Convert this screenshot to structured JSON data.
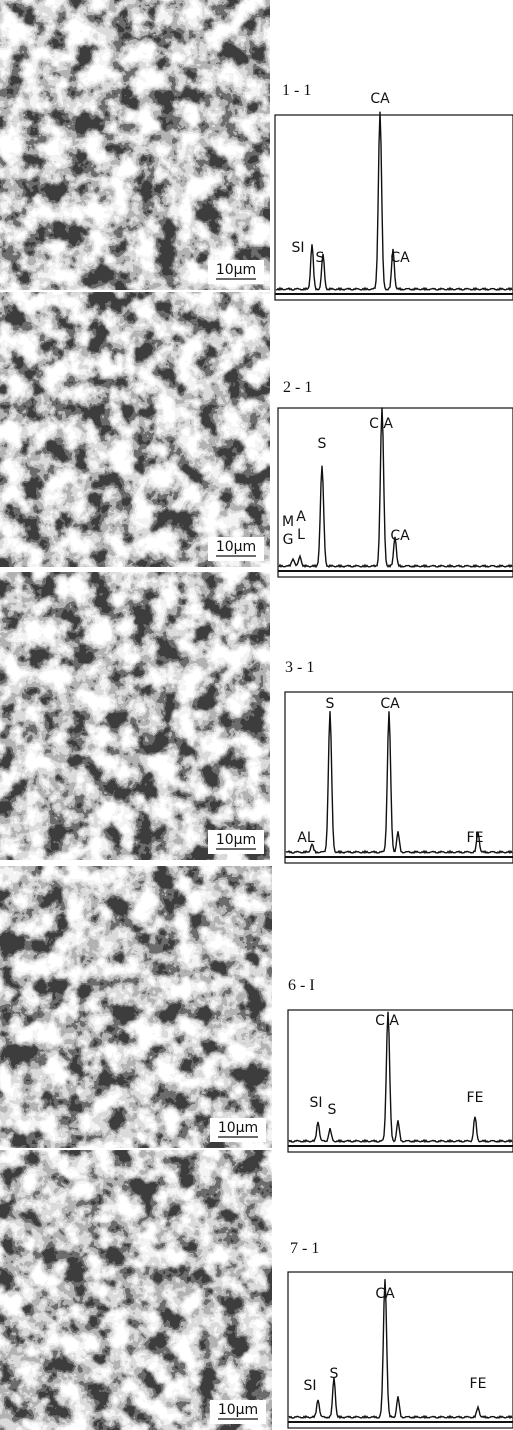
{
  "panels": [
    {
      "label": "1 - 1",
      "scale_bar": "10μm",
      "peaks": [
        "SI",
        "S",
        "CA",
        "CA"
      ]
    },
    {
      "label": "2 - 1",
      "scale_bar": "10μm",
      "peaks": [
        "MG",
        "AL",
        "S",
        "C A",
        "CA"
      ]
    },
    {
      "label": "3 - 1",
      "scale_bar": "10μm",
      "peaks": [
        "AL",
        "S",
        "CA",
        "FE"
      ]
    },
    {
      "label": "6 - I",
      "scale_bar": "10μm",
      "peaks": [
        "SI",
        "S",
        "C A",
        "FE"
      ]
    },
    {
      "label": "7 - 1",
      "scale_bar": "10μm",
      "peaks": [
        "SI",
        "S",
        "CA",
        "FE"
      ]
    }
  ]
}
